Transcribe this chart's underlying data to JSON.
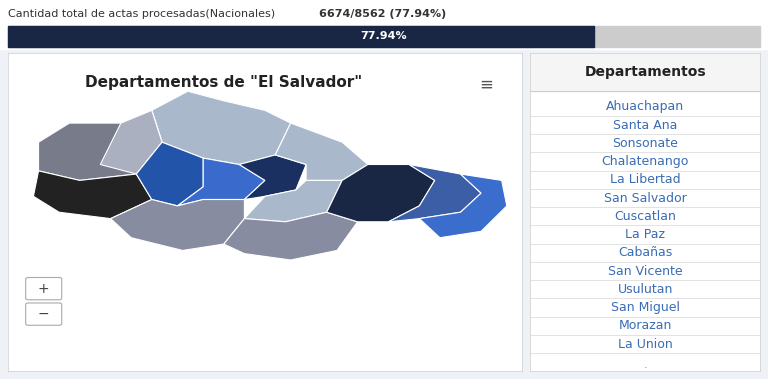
{
  "progress_value": 0.7794,
  "progress_label": "77.94%",
  "progress_bar_color": "#1a2744",
  "progress_bg_color": "#cccccc",
  "map_title": "Departamentos de \"El Salvador\"",
  "table_title": "Departamentos",
  "departments": [
    "Ahuachapan",
    "Santa Ana",
    "Sonsonate",
    "Chalatenango",
    "La Libertad",
    "San Salvador",
    "Cuscatlan",
    "La Paz",
    "Cabañas",
    "San Vicente",
    "Usulutan",
    "San Miguel",
    "Morazan",
    "La Union"
  ],
  "bg_color": "#eef2f7",
  "border_color": "#cccccc",
  "link_color": "#3a6cb5",
  "text_color": "#333333",
  "font_size_title": 11,
  "font_size_dept": 9,
  "header_bg": "#f5f5f5"
}
